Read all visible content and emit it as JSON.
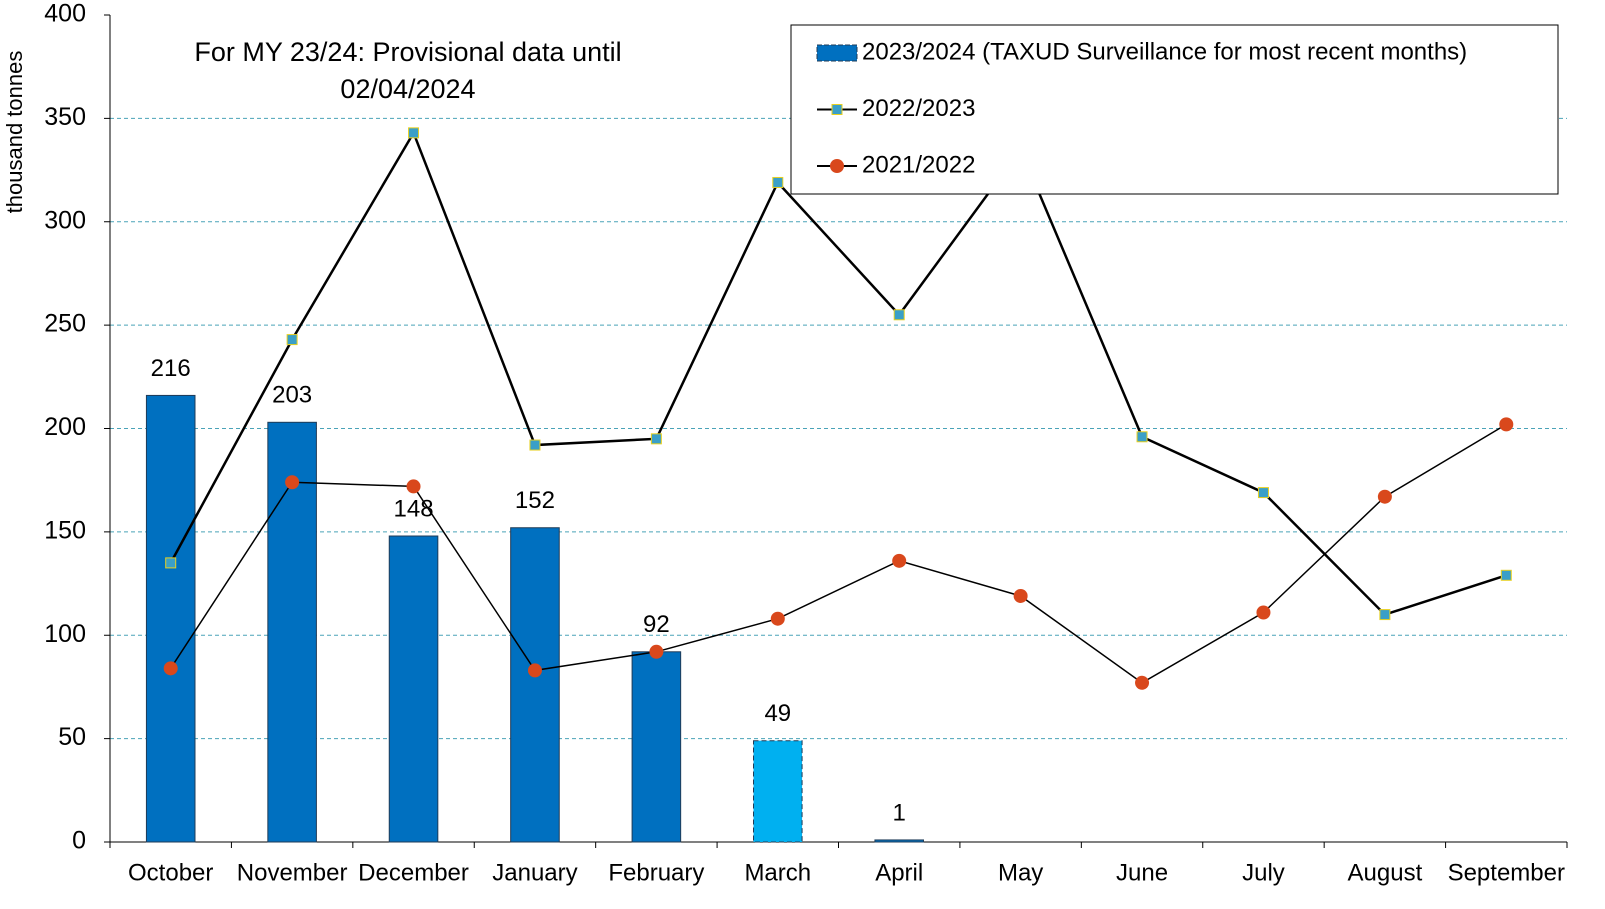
{
  "chart_data": {
    "type": "bar_line",
    "annotation": [
      "For MY 23/24: Provisional data until",
      "02/04/2024"
    ],
    "ylabel": "thousand tonnes",
    "categories": [
      "October",
      "November",
      "December",
      "January",
      "February",
      "March",
      "April",
      "May",
      "June",
      "July",
      "August",
      "September"
    ],
    "series": [
      {
        "name": "2023/2024 (TAXUD Surveillance for most recent months)",
        "type": "bar",
        "color": "#0070c0",
        "colors": [
          "#0070c0",
          "#0070c0",
          "#0070c0",
          "#0070c0",
          "#0070c0",
          "#00b0f0",
          "#0070c0",
          null,
          null,
          null,
          null,
          null
        ],
        "values": [
          216,
          203,
          148,
          152,
          92,
          49,
          1,
          null,
          null,
          null,
          null,
          null
        ]
      },
      {
        "name": "2022/2023",
        "type": "line",
        "color": "#000000",
        "marker": "square",
        "marker_color": "#3a9fc8",
        "values": [
          135,
          243,
          343,
          192,
          195,
          319,
          255,
          335,
          196,
          169,
          110,
          129
        ]
      },
      {
        "name": "2021/2022",
        "type": "line",
        "color": "#000000",
        "marker": "circle",
        "marker_color": "#d9481c",
        "values": [
          84,
          174,
          172,
          83,
          92,
          108,
          136,
          119,
          77,
          111,
          167,
          202
        ]
      }
    ],
    "ylim": [
      0,
      400
    ],
    "yticks": [
      0,
      50,
      100,
      150,
      200,
      250,
      300,
      350,
      400
    ],
    "grid": true,
    "legend": "top-right"
  }
}
